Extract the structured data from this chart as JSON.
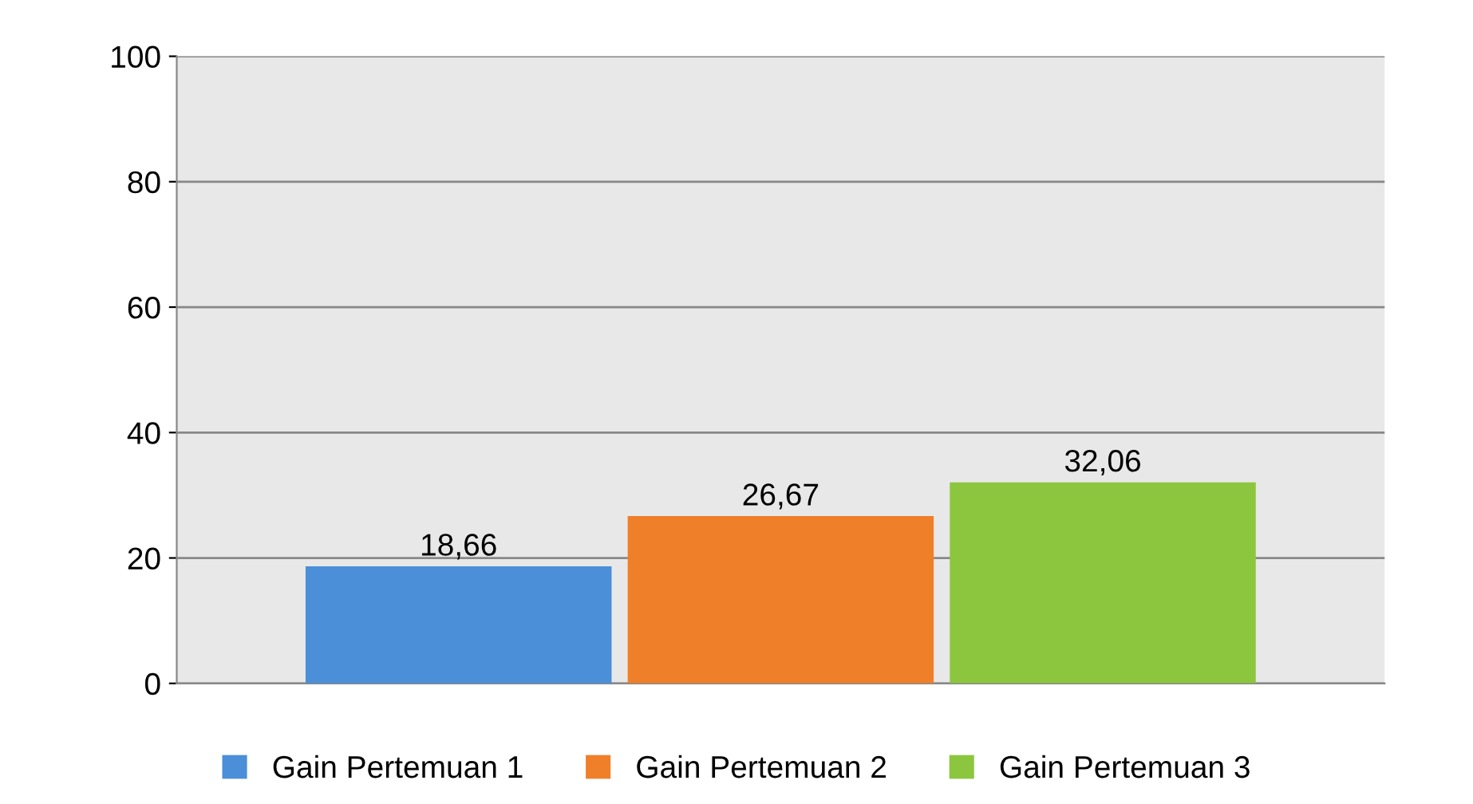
{
  "chart_data": {
    "type": "bar",
    "categories": [
      null
    ],
    "series": [
      {
        "name": "Gain Pertemuan 1",
        "color": "#4a8fd8",
        "values": [
          18.66
        ],
        "value_labels": [
          "18,66"
        ]
      },
      {
        "name": "Gain Pertemuan 2",
        "color": "#f07f2a",
        "values": [
          26.67
        ],
        "value_labels": [
          "26,67"
        ]
      },
      {
        "name": "Gain Pertemuan 3",
        "color": "#8cc63f",
        "values": [
          32.06
        ],
        "value_labels": [
          "32,06"
        ]
      }
    ],
    "ylim": [
      0,
      100
    ],
    "yticks": [
      0,
      20,
      40,
      60,
      80,
      100
    ],
    "grid": "y",
    "legend": "bottom"
  }
}
